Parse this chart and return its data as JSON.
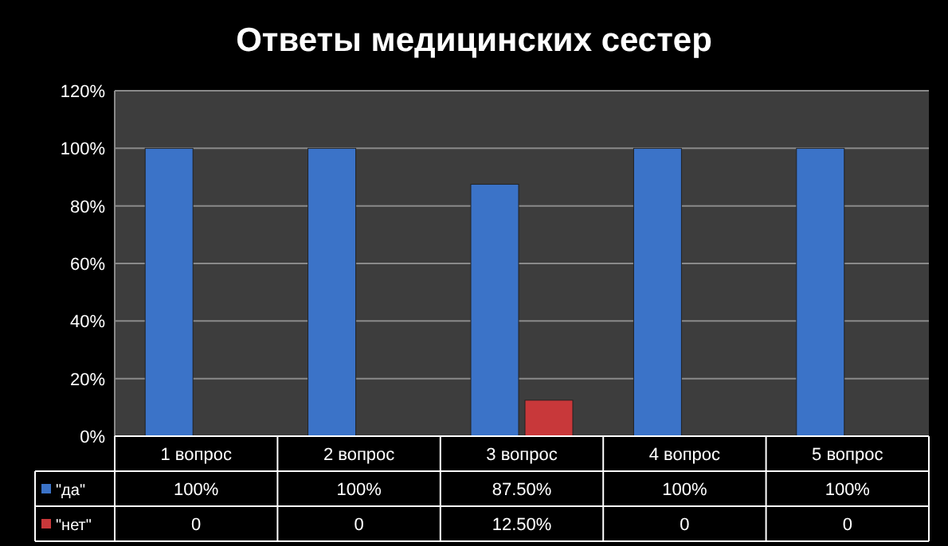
{
  "chart_data": {
    "type": "bar",
    "title": "Ответы медицинских сестер",
    "categories": [
      "1 вопрос",
      "2 вопрос",
      "3 вопрос",
      "4 вопрос",
      "5 вопрос"
    ],
    "series": [
      {
        "name": "\"да\"",
        "color": "#3b73c8",
        "values": [
          100,
          100,
          87.5,
          100,
          100
        ],
        "value_labels": [
          "100%",
          "100%",
          "87.50%",
          "100%",
          "100%"
        ]
      },
      {
        "name": "\"нет\"",
        "color": "#c8383a",
        "values": [
          0,
          0,
          12.5,
          0,
          0
        ],
        "value_labels": [
          "0",
          "0",
          "12.50%",
          "0",
          "0"
        ]
      }
    ],
    "ylim": [
      0,
      120
    ],
    "yticks": [
      {
        "value": 0,
        "label": "0%"
      },
      {
        "value": 20,
        "label": "20%"
      },
      {
        "value": 40,
        "label": "40%"
      },
      {
        "value": 60,
        "label": "60%"
      },
      {
        "value": 80,
        "label": "80%"
      },
      {
        "value": 100,
        "label": "100%"
      },
      {
        "value": 120,
        "label": "120%"
      }
    ],
    "grid": "y",
    "legend": "bottom"
  }
}
